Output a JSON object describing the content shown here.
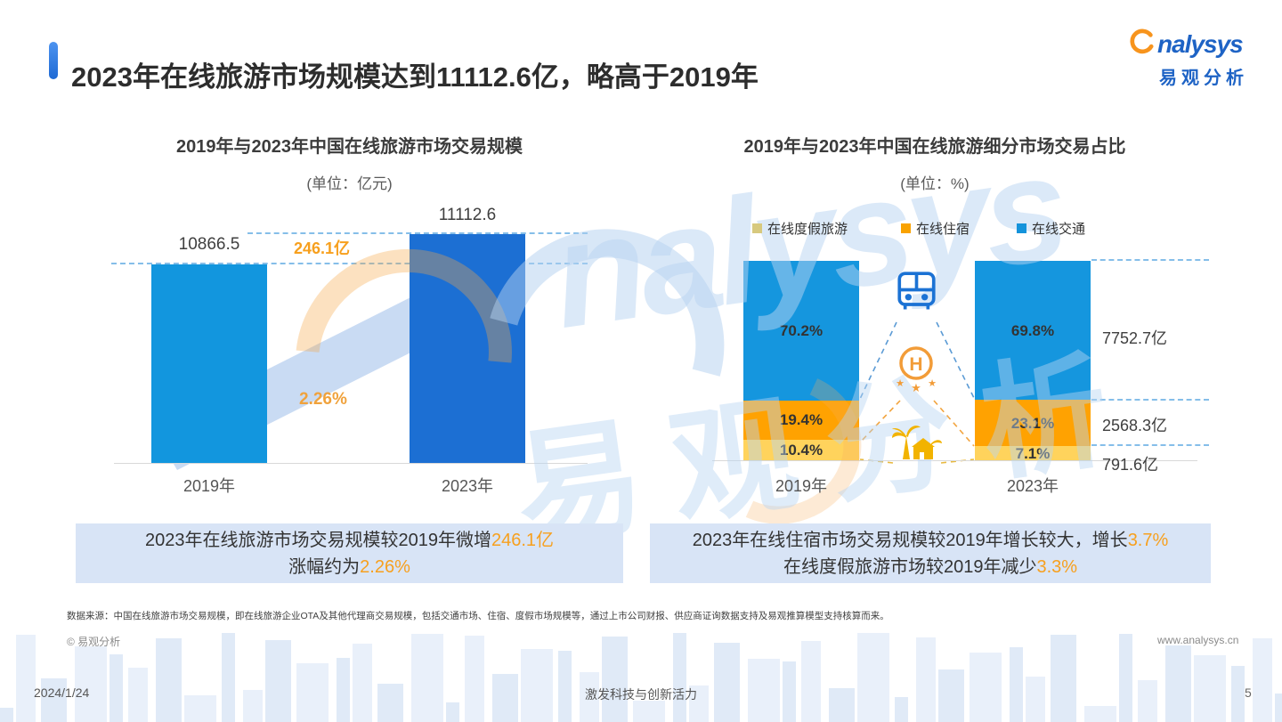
{
  "header": {
    "title": "2023年在线旅游市场规模达到11112.6亿，略高于2019年",
    "logo_text": "nalysys",
    "logo_cn": "易观分析"
  },
  "left_chart": {
    "title": "2019年与2023年中国在线旅游市场交易规模",
    "subtitle": "(单位：亿元)",
    "value_labels": [
      "10866.5",
      "11112.6"
    ],
    "diff_label": "246.1亿",
    "growth_label": "2.26%",
    "x_labels": [
      "2019年",
      "2023年"
    ]
  },
  "right_chart": {
    "title": "2019年与2023年中国在线旅游细分市场交易占比",
    "subtitle": "(单位：%)",
    "legend": [
      "在线度假旅游",
      "在线住宿",
      "在线交通"
    ],
    "pct_2019": [
      "70.2%",
      "19.4%",
      "10.4%"
    ],
    "pct_2023": [
      "69.8%",
      "23.1%",
      "7.1%"
    ],
    "value_labels": [
      "7752.7亿",
      "2568.3亿",
      "791.6亿"
    ],
    "x_labels": [
      "2019年",
      "2023年"
    ]
  },
  "summary_left": {
    "line1": "2023年在线旅游市场交易规模较2019年微增",
    "line1_hl": "246.1亿",
    "line2": "涨幅约为",
    "line2_hl": "2.26%"
  },
  "summary_right": {
    "line1": "2023年在线住宿市场交易规模较2019年增长较大，增长",
    "line1_hl": "3.7%",
    "line2": "在线度假旅游市场较2019年减少",
    "line2_hl": "3.3%"
  },
  "source_note": "数据来源：中国在线旅游市场交易规模，即在线旅游企业OTA及其他代理商交易规模，包括交通市场、住宿、度假市场规模等，通过上市公司财报、供应商证询数据支持及易观推算模型支持核算而来。",
  "footer": {
    "copyright": "© 易观分析",
    "website": "www.analysys.cn",
    "date": "2024/1/24",
    "slogan": "激发科技与创新活力",
    "page": "5"
  },
  "colors": {
    "accent_blue": "#1E6AD4",
    "bar_blue_2019": "#1296DE",
    "bar_blue_2023": "#1C6FD3",
    "transport_blue": "#1596DE",
    "hotel_orange": "#FFA201",
    "vacation_gold": "#FFD35C",
    "legend_khaki": "#D7C97E",
    "highlight_orange": "#F7A01E",
    "summary_bg": "#D8E4F6"
  },
  "chart_data": [
    {
      "type": "bar",
      "title": "2019年与2023年中国在线旅游市场交易规模",
      "subtitle_unit": "亿元",
      "categories": [
        "2019年",
        "2023年"
      ],
      "values": [
        10866.5,
        11112.6
      ],
      "annotations": {
        "difference": "246.1亿",
        "growth": "2.26%"
      },
      "grid": false,
      "legend_position": "none"
    },
    {
      "type": "bar",
      "stacked": true,
      "title": "2019年与2023年中国在线旅游细分市场交易占比",
      "subtitle_unit": "%",
      "categories": [
        "2019年",
        "2023年"
      ],
      "series": [
        {
          "name": "在线度假旅游",
          "values": [
            10.4,
            7.1
          ],
          "color": "#FFD35C"
        },
        {
          "name": "在线住宿",
          "values": [
            19.4,
            23.1
          ],
          "color": "#FFA201"
        },
        {
          "name": "在线交通",
          "values": [
            70.2,
            69.8
          ],
          "color": "#1596DE"
        }
      ],
      "value_labels_2023_absolute": [
        "7752.7亿",
        "2568.3亿",
        "791.6亿"
      ],
      "ylim": [
        0,
        100
      ],
      "grid": false,
      "legend_position": "top"
    }
  ]
}
